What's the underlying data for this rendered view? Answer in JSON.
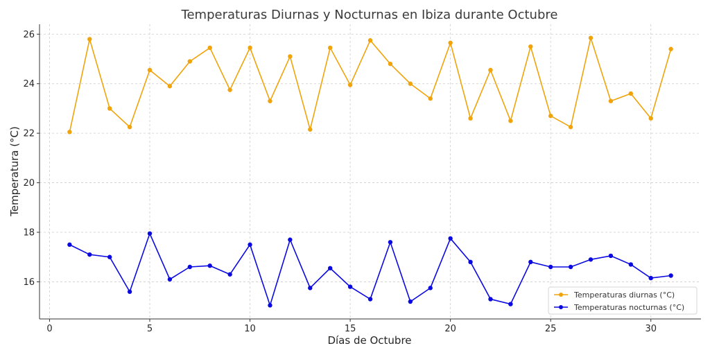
{
  "chart_data": {
    "type": "line",
    "title": "Temperaturas Diurnas y Nocturnas en Ibiza durante Octubre",
    "xlabel": "Días de Octubre",
    "ylabel": "Temperatura (°C)",
    "xlim": [
      -0.5,
      32.5
    ],
    "ylim": [
      14.5,
      26.4
    ],
    "xticks": [
      0,
      5,
      10,
      15,
      20,
      25,
      30
    ],
    "yticks": [
      16,
      18,
      20,
      22,
      24,
      26
    ],
    "grid": true,
    "legend_position": "bottom-right",
    "x": [
      1,
      2,
      3,
      4,
      5,
      6,
      7,
      8,
      9,
      10,
      11,
      12,
      13,
      14,
      15,
      16,
      17,
      18,
      19,
      20,
      21,
      22,
      23,
      24,
      25,
      26,
      27,
      28,
      29,
      30,
      31
    ],
    "series": [
      {
        "name": "Temperaturas diurnas (°C)",
        "color": "#f0a30a",
        "values": [
          22.05,
          25.8,
          23.0,
          22.25,
          24.55,
          23.9,
          24.9,
          25.45,
          23.75,
          25.45,
          23.3,
          25.1,
          22.15,
          25.45,
          23.95,
          25.75,
          24.8,
          24.0,
          23.4,
          25.65,
          22.6,
          24.55,
          22.5,
          25.5,
          22.7,
          22.25,
          25.85,
          23.3,
          23.6,
          22.6,
          25.4
        ]
      },
      {
        "name": "Temperaturas nocturnas (°C)",
        "color": "#0a0ae0",
        "values": [
          17.5,
          17.1,
          17.0,
          15.6,
          17.95,
          16.1,
          16.6,
          16.65,
          16.3,
          17.5,
          15.05,
          17.7,
          15.75,
          16.55,
          15.8,
          15.3,
          17.6,
          15.2,
          15.75,
          17.75,
          16.8,
          15.3,
          15.1,
          16.8,
          16.6,
          16.6,
          16.9,
          17.05,
          16.7,
          16.15,
          16.25
        ]
      }
    ]
  }
}
